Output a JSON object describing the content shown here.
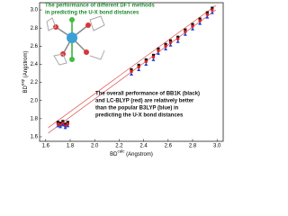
{
  "chart_data": {
    "type": "scatter",
    "title_lines": [
      "The performance of different DFT methods",
      "in predicting the U-X bond distances"
    ],
    "annotation_lines": [
      "The overall performance of BB1K (black)",
      "and LC-BLYP (red) are relatively better",
      "than the popular B3LYP (blue) in",
      "predicting the U-X bond distances"
    ],
    "xlabel": {
      "base": "BD",
      "sup": "calc",
      "rest": " (Angstrom)"
    },
    "ylabel": {
      "base": "BD",
      "sup": "exp",
      "rest": " (Angstrom)"
    },
    "xlim": [
      1.55,
      3.05
    ],
    "ylim": [
      1.55,
      3.08
    ],
    "xticks": [
      1.6,
      1.8,
      {
        "value": 2.0,
        "label": "2.0"
      },
      2.2,
      2.4,
      2.6,
      2.8,
      {
        "value": 3.0,
        "label": "3.0"
      }
    ],
    "yticks": [
      1.6,
      1.8,
      {
        "value": 2.0,
        "label": "2.0"
      },
      2.2,
      2.4,
      2.6,
      2.8,
      {
        "value": 3.0,
        "label": "3.0"
      }
    ],
    "series": [
      {
        "name": "BB1K",
        "color": "#111111",
        "marker": "square",
        "x": [
          1.7,
          1.72,
          1.74,
          1.76,
          1.78,
          2.3,
          2.36,
          2.42,
          2.48,
          2.52,
          2.58,
          2.62,
          2.68,
          2.74,
          2.8,
          2.86,
          2.92,
          2.96
        ],
        "y": [
          1.76,
          1.75,
          1.77,
          1.74,
          1.76,
          2.34,
          2.39,
          2.45,
          2.5,
          2.57,
          2.62,
          2.66,
          2.7,
          2.78,
          2.84,
          2.9,
          2.97,
          3.02
        ]
      },
      {
        "name": "LC-BLYP",
        "color": "#e02020",
        "marker": "circle",
        "x": [
          1.7,
          1.72,
          1.74,
          1.76,
          1.78,
          2.3,
          2.36,
          2.42,
          2.48,
          2.52,
          2.58,
          2.62,
          2.68,
          2.74,
          2.8,
          2.86,
          2.92,
          2.96
        ],
        "y": [
          1.74,
          1.73,
          1.75,
          1.72,
          1.74,
          2.32,
          2.37,
          2.43,
          2.48,
          2.55,
          2.6,
          2.64,
          2.68,
          2.76,
          2.82,
          2.88,
          2.95,
          3.0
        ]
      },
      {
        "name": "B3LYP",
        "color": "#2040d0",
        "marker": "triangle",
        "x": [
          1.7,
          1.72,
          1.74,
          1.76,
          1.78,
          2.3,
          2.36,
          2.42,
          2.48,
          2.52,
          2.58,
          2.62,
          2.68,
          2.74,
          2.8,
          2.86,
          2.92,
          2.96
        ],
        "y": [
          1.72,
          1.71,
          1.73,
          1.7,
          1.72,
          2.29,
          2.34,
          2.4,
          2.45,
          2.52,
          2.57,
          2.61,
          2.65,
          2.73,
          2.79,
          2.85,
          2.92,
          2.97
        ]
      }
    ],
    "fit_lines": [
      {
        "color": "#e06060",
        "x": [
          1.62,
          2.99
        ],
        "y": [
          1.7,
          3.05
        ]
      },
      {
        "color": "#e06060",
        "x": [
          1.62,
          2.99
        ],
        "y": [
          1.64,
          3.0
        ]
      }
    ]
  }
}
